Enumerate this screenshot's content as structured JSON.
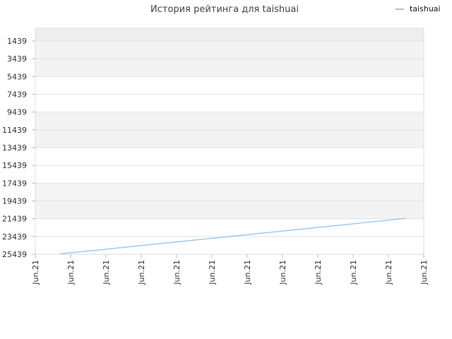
{
  "chart_data": {
    "type": "line",
    "title": "История рейтинга для taishuai",
    "xlabel": "",
    "ylabel": "",
    "y_inverted": true,
    "ylim": [
      1439,
      25439
    ],
    "yticks": [
      1439,
      3439,
      5439,
      7439,
      9439,
      11439,
      13439,
      15439,
      17439,
      19439,
      21439,
      23439,
      25439
    ],
    "xticks": [
      "Jun.21",
      "Jun.21",
      "Jun.21",
      "Jun.21",
      "Jun.21",
      "Jun.21",
      "Jun.21",
      "Jun.21",
      "Jun.21",
      "Jun.21",
      "Jun.21",
      "Jun.21"
    ],
    "grid": true,
    "legend": {
      "position": "top-right",
      "entries": [
        "taishuai"
      ]
    },
    "series": [
      {
        "name": "taishuai",
        "color": "#a0c8f0",
        "x": [
          0.7,
          10.5
        ],
        "y": [
          25400,
          21400
        ]
      }
    ]
  }
}
